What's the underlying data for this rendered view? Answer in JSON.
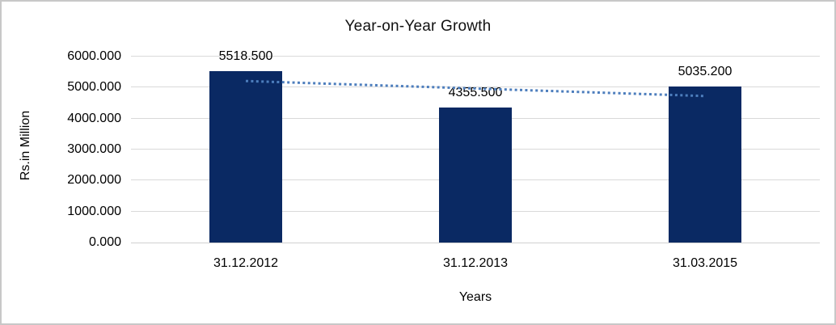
{
  "chart_data": {
    "type": "bar",
    "title": "Year-on-Year Growth",
    "xlabel": "Years",
    "ylabel": "Rs.in Million",
    "categories": [
      "31.12.2012",
      "31.12.2013",
      "31.03.2015"
    ],
    "values": [
      5518.5,
      4355.5,
      5035.2
    ],
    "value_labels": [
      "5518.500",
      "4355.500",
      "5035.200"
    ],
    "ylim": [
      0,
      6000
    ],
    "ytick_labels": [
      "0.000",
      "1000.000",
      "2000.000",
      "3000.000",
      "4000.000",
      "5000.000",
      "6000.000"
    ],
    "grid": true,
    "legend": "none",
    "trendline": {
      "type": "linear",
      "style": "dotted"
    },
    "colors": {
      "bar": "#0a2963",
      "trendline": "#4d7ebd",
      "gridline": "#d9d9d9",
      "axis_line": "#d0d0d0",
      "text": "#000000",
      "title_text": "#111111",
      "frame_border": "#c8c8c8",
      "background": "#ffffff"
    }
  }
}
